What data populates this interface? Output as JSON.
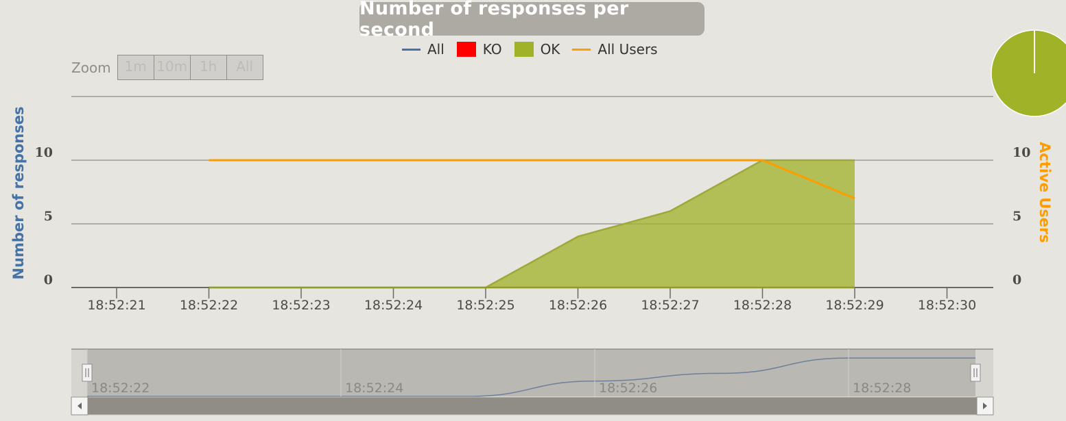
{
  "title": "Number of responses per second",
  "legend": {
    "all": "All",
    "ko": "KO",
    "ok": "OK",
    "all_users": "All Users"
  },
  "zoom": {
    "label": "Zoom",
    "buttons": [
      "1m",
      "10m",
      "1h",
      "All"
    ]
  },
  "colors": {
    "all": "#4572a7",
    "ko": "#ff0000",
    "ok": "#a0b228",
    "all_users": "#ff9d00",
    "left_axis_title": "#4572a7",
    "right_axis_title": "#ff9d00"
  },
  "chart_data": {
    "type": "area",
    "title": "Number of responses per second",
    "x": [
      "18:52:22",
      "18:52:23",
      "18:52:24",
      "18:52:25",
      "18:52:26",
      "18:52:27",
      "18:52:28",
      "18:52:29"
    ],
    "x_ticks": [
      "18:52:21",
      "18:52:22",
      "18:52:23",
      "18:52:24",
      "18:52:25",
      "18:52:26",
      "18:52:27",
      "18:52:28",
      "18:52:29",
      "18:52:30"
    ],
    "y_axis_left": {
      "title": "Number of responses",
      "ticks": [
        "0",
        "5",
        "10"
      ],
      "ylim": [
        0,
        15
      ]
    },
    "y_axis_right": {
      "title": "Active Users",
      "ticks": [
        "0",
        "5",
        "10"
      ],
      "ylim": [
        0,
        15
      ]
    },
    "series": [
      {
        "name": "All",
        "type": "line",
        "values": [
          0,
          0,
          0,
          0,
          4,
          6,
          10,
          10
        ]
      },
      {
        "name": "KO",
        "type": "area",
        "values": [
          0,
          0,
          0,
          0,
          0,
          0,
          0,
          0
        ]
      },
      {
        "name": "OK",
        "type": "area",
        "values": [
          0,
          0,
          0,
          0,
          4,
          6,
          10,
          10
        ]
      },
      {
        "name": "All Users",
        "type": "line",
        "axis": "right",
        "values": [
          10,
          10,
          10,
          10,
          10,
          10,
          10,
          7
        ]
      }
    ],
    "pie": {
      "slices": [
        {
          "name": "OK",
          "value": 100
        }
      ]
    },
    "navigator": {
      "labels": [
        "18:52:22",
        "18:52:24",
        "18:52:26",
        "18:52:28"
      ]
    },
    "grid": true,
    "legend_position": "top"
  }
}
